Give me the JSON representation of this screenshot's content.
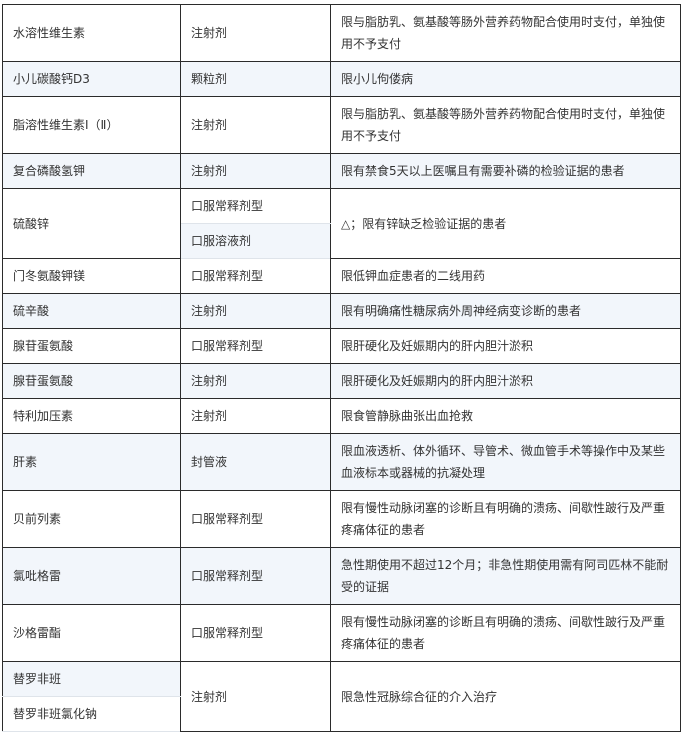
{
  "rows": [
    {
      "name": "水溶性维生素",
      "form": "注射剂",
      "limit": "限与脂肪乳、氨基酸等肠外营养药物配合使用时支付，单独使用不予支付"
    },
    {
      "name": "小儿碳酸钙D3",
      "form": "颗粒剂",
      "limit": "限小儿佝偻病"
    },
    {
      "name": "脂溶性维生素Ⅰ（Ⅱ）",
      "form": "注射剂",
      "limit": "限与脂肪乳、氨基酸等肠外营养药物配合使用时支付，单独使用不予支付"
    },
    {
      "name": "复合磷酸氢钾",
      "form": "注射剂",
      "limit": "限有禁食5天以上医嘱且有需要补磷的检验证据的患者"
    },
    {
      "name": "硫酸锌",
      "forms": [
        "口服常释剂型",
        "口服溶液剂"
      ],
      "limit": "△；限有锌缺乏检验证据的患者"
    },
    {
      "name": "门冬氨酸钾镁",
      "form": "口服常释剂型",
      "limit": "限低钾血症患者的二线用药"
    },
    {
      "name": "硫辛酸",
      "form": "注射剂",
      "limit": "限有明确痛性糖尿病外周神经病变诊断的患者"
    },
    {
      "name": "腺苷蛋氨酸",
      "form": "口服常释剂型",
      "limit": "限肝硬化及妊娠期内的肝内胆汁淤积"
    },
    {
      "name": "腺苷蛋氨酸",
      "form": "注射剂",
      "limit": "限肝硬化及妊娠期内的肝内胆汁淤积"
    },
    {
      "name": "特利加压素",
      "form": "注射剂",
      "limit": "限食管静脉曲张出血抢救"
    },
    {
      "name": "肝素",
      "form": "封管液",
      "limit": "限血液透析、体外循环、导管术、微血管手术等操作中及某些血液标本或器械的抗凝处理"
    },
    {
      "name": "贝前列素",
      "form": "口服常释剂型",
      "limit": "限有慢性动脉闭塞的诊断且有明确的溃疡、间歇性跛行及严重疼痛体征的患者"
    },
    {
      "name": "氯吡格雷",
      "form": "口服常释剂型",
      "limit": "急性期使用不超过12个月；非急性期使用需有阿司匹林不能耐受的证据"
    },
    {
      "name": "沙格雷酯",
      "form": "口服常释剂型",
      "limit": "限有慢性动脉闭塞的诊断且有明确的溃疡、间歇性跛行及严重疼痛体征的患者"
    },
    {
      "names": [
        "替罗非班",
        "替罗非班氯化钠"
      ],
      "form": "注射剂",
      "limit": "限急性冠脉综合征的介入治疗"
    }
  ]
}
